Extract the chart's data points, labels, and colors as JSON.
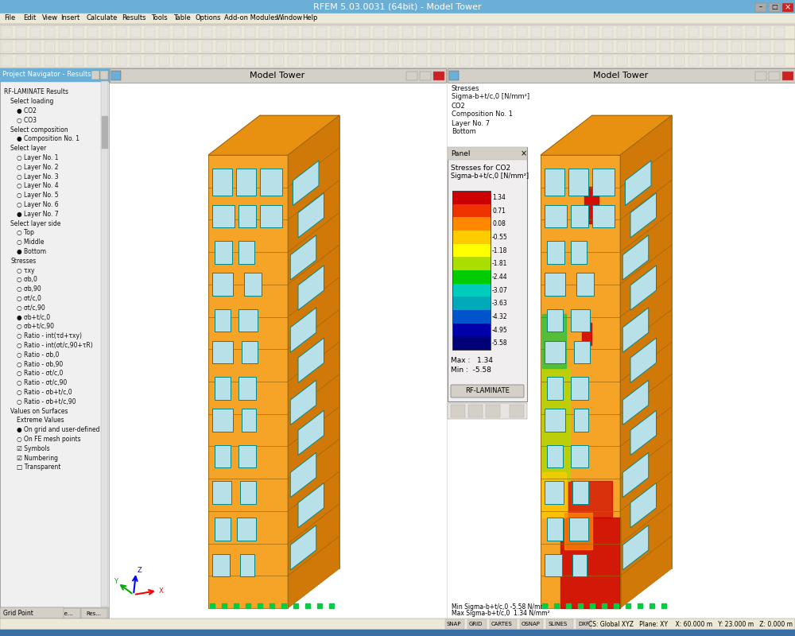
{
  "title": "RFEM 5.03.0031 (64bit) - Model Tower",
  "title_bar_color": "#6baed6",
  "bg_color": "#d4d0c8",
  "menubar_color": "#ece9d8",
  "left_panel_bg": "#f0f0f0",
  "left_panel_title": "Project Navigator - Results",
  "viewport_bg": "#ffffff",
  "viewport_bg_right": "#ffffff",
  "left_window_title": "Model Tower",
  "right_window_title": "Model Tower",
  "tower_color_front": "#f5a428",
  "tower_color_top": "#e89010",
  "tower_color_right": "#d07808",
  "tower_color_left": "#c06800",
  "window_color": "#b8e0e8",
  "window_edge": "#008888",
  "grid_line_color": "#cccccc",
  "grid_dot_color": "#bbbbbb",
  "colorbar_labels": [
    "1.34",
    "0.71",
    "0.08",
    "-0.55",
    "-1.18",
    "-1.81",
    "-2.44",
    "-3.07",
    "-3.63",
    "-4.32",
    "-4.95",
    "-5.58"
  ],
  "colorbar_colors": [
    "#cc0000",
    "#ee3300",
    "#ff8800",
    "#ffcc00",
    "#ffff00",
    "#aadd00",
    "#00cc00",
    "#00ccbb",
    "#00aabb",
    "#0055cc",
    "#0000aa",
    "#000077"
  ],
  "panel_title": "Panel",
  "stress_title": "Stresses for CO2",
  "stress_label": "Sigma-b+t/c,0 [N/mm²]",
  "max_val": "1.34",
  "min_val": "-5.58",
  "rf_laminate_btn": "RF-LAMINATE",
  "left_info_lines": [
    "Stresses",
    "Sigma-b+t/c,0 [N/mm²]",
    "CO2",
    "Composition No. 1",
    "Layer No. 7",
    "Bottom"
  ],
  "status_bar_left": "Grid Point",
  "status_bar_right": "SNAP  GRID  CARTES  OSNAP  SLINES  DXF          CS: Global XYZ   Plane: XY    X: 60.000 m  Y: 23.000 m  Z: 0.000 m",
  "left_tree_items": [
    [
      0,
      "RF-LAMINATE Results"
    ],
    [
      1,
      "Select loading"
    ],
    [
      2,
      "● CO2"
    ],
    [
      2,
      "○ CO3"
    ],
    [
      1,
      "Select composition"
    ],
    [
      2,
      "● Composition No. 1"
    ],
    [
      1,
      "Select layer"
    ],
    [
      2,
      "○ Layer No. 1"
    ],
    [
      2,
      "○ Layer No. 2"
    ],
    [
      2,
      "○ Layer No. 3"
    ],
    [
      2,
      "○ Layer No. 4"
    ],
    [
      2,
      "○ Layer No. 5"
    ],
    [
      2,
      "○ Layer No. 6"
    ],
    [
      2,
      "● Layer No. 7"
    ],
    [
      1,
      "Select layer side"
    ],
    [
      2,
      "○ Top"
    ],
    [
      2,
      "○ Middle"
    ],
    [
      2,
      "● Bottom"
    ],
    [
      1,
      "Stresses"
    ],
    [
      2,
      "○ τxy"
    ],
    [
      2,
      "○ σb,0"
    ],
    [
      2,
      "○ σb,90"
    ],
    [
      2,
      "○ σt/c,0"
    ],
    [
      2,
      "○ σt/c,90"
    ],
    [
      2,
      "● σb+t/c,0"
    ],
    [
      2,
      "○ σb+t/c,90"
    ],
    [
      2,
      "○ Ratio - int(τd+τxy)"
    ],
    [
      2,
      "○ Ratio - int(σt/c,90+τR)"
    ],
    [
      2,
      "○ Ratio - σb,0"
    ],
    [
      2,
      "○ Ratio - σb,90"
    ],
    [
      2,
      "○ Ratio - σt/c,0"
    ],
    [
      2,
      "○ Ratio - σt/c,90"
    ],
    [
      2,
      "○ Ratio - σb+t/c,0"
    ],
    [
      2,
      "○ Ratio - σb+t/c,90"
    ],
    [
      1,
      "Values on Surfaces"
    ],
    [
      2,
      "Extreme Values"
    ],
    [
      2,
      "● On grid and user-defined"
    ],
    [
      2,
      "○ On FE mesh points"
    ],
    [
      2,
      "☑ Symbols"
    ],
    [
      2,
      "☑ Numbering"
    ],
    [
      2,
      "□ Transparent"
    ]
  ]
}
